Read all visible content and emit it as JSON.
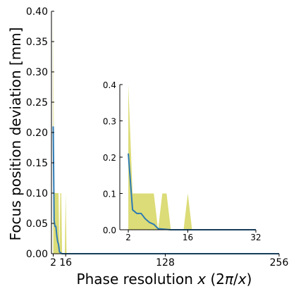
{
  "chart_data": [
    {
      "type": "line",
      "panel": "main",
      "xlabel": "Phase resolution $x\\,(2\\pi/x)$",
      "xlabel_parts": [
        "Phase resolution ",
        "x",
        " (2",
        "π",
        "/",
        "x",
        ")"
      ],
      "ylabel": "Focus position deviation [mm]",
      "xlim": [
        0,
        256
      ],
      "ylim": [
        0,
        0.4
      ],
      "xticks": [
        2,
        16,
        128,
        256
      ],
      "xtick_labels": [
        "2",
        "16",
        "128",
        "256"
      ],
      "yticks": [
        0,
        0.05,
        0.1,
        0.15,
        0.2,
        0.25,
        0.3,
        0.35,
        0.4
      ],
      "ytick_labels": [
        "0.00",
        "0.05",
        "0.10",
        "0.15",
        "0.20",
        "0.25",
        "0.30",
        "0.35",
        "0.40"
      ],
      "grid": false,
      "mean_color": "#2e7bb4",
      "band_color": "#dcdc78",
      "axis_color": "#000000",
      "x": [
        2,
        3,
        4,
        5,
        6,
        7,
        8,
        9,
        10,
        11,
        12,
        13,
        14,
        15,
        16,
        17,
        18,
        19,
        20,
        21,
        22,
        23,
        24,
        25,
        26,
        27,
        28,
        29,
        30,
        31,
        32,
        64,
        96,
        128,
        160,
        192,
        224,
        256
      ],
      "mean": [
        0.21,
        0.055,
        0.045,
        0.045,
        0.03,
        0.02,
        0.015,
        0.003,
        0.002,
        0.001,
        0,
        0,
        0,
        0,
        0,
        0,
        0,
        0,
        0,
        0,
        0,
        0,
        0,
        0,
        0,
        0,
        0,
        0,
        0,
        0,
        0,
        0,
        0,
        0,
        0,
        0,
        0,
        0
      ],
      "upper": [
        0.4,
        0.1,
        0.1,
        0.1,
        0.1,
        0.1,
        0.1,
        0,
        0.1,
        0.1,
        0,
        0,
        0,
        0,
        0.1,
        0,
        0,
        0,
        0,
        0,
        0,
        0,
        0,
        0,
        0,
        0,
        0,
        0,
        0,
        0,
        0,
        0,
        0,
        0,
        0,
        0,
        0,
        0
      ],
      "lower": [
        0,
        0,
        0,
        0,
        0,
        0,
        0,
        0,
        0,
        0,
        0,
        0,
        0,
        0,
        0,
        0,
        0,
        0,
        0,
        0,
        0,
        0,
        0,
        0,
        0,
        0,
        0,
        0,
        0,
        0,
        0,
        0,
        0,
        0,
        0,
        0,
        0,
        0
      ]
    },
    {
      "type": "line",
      "panel": "inset",
      "xlim": [
        0,
        32
      ],
      "ylim": [
        0,
        0.4
      ],
      "xticks": [
        2,
        16,
        32
      ],
      "xtick_labels": [
        "2",
        "16",
        "32"
      ],
      "yticks": [
        0,
        0.1,
        0.2,
        0.3,
        0.4
      ],
      "ytick_labels": [
        "0.0",
        "0.1",
        "0.2",
        "0.3",
        "0.4"
      ],
      "grid": false,
      "x": [
        2,
        3,
        4,
        5,
        6,
        7,
        8,
        9,
        10,
        11,
        12,
        13,
        14,
        15,
        16,
        17,
        18,
        19,
        20,
        21,
        22,
        23,
        24,
        25,
        26,
        27,
        28,
        29,
        30,
        31,
        32
      ],
      "mean": [
        0.21,
        0.055,
        0.045,
        0.045,
        0.03,
        0.02,
        0.015,
        0.003,
        0.002,
        0.001,
        0,
        0,
        0,
        0,
        0,
        0,
        0,
        0,
        0,
        0,
        0,
        0,
        0,
        0,
        0,
        0,
        0,
        0,
        0,
        0,
        0
      ],
      "upper": [
        0.4,
        0.1,
        0.1,
        0.1,
        0.1,
        0.1,
        0.1,
        0,
        0.1,
        0.1,
        0,
        0,
        0,
        0,
        0.1,
        0,
        0,
        0,
        0,
        0,
        0,
        0,
        0,
        0,
        0,
        0,
        0,
        0,
        0,
        0,
        0
      ],
      "lower": [
        0,
        0,
        0,
        0,
        0,
        0,
        0,
        0,
        0,
        0,
        0,
        0,
        0,
        0,
        0,
        0,
        0,
        0,
        0,
        0,
        0,
        0,
        0,
        0,
        0,
        0,
        0,
        0,
        0,
        0,
        0
      ]
    }
  ]
}
